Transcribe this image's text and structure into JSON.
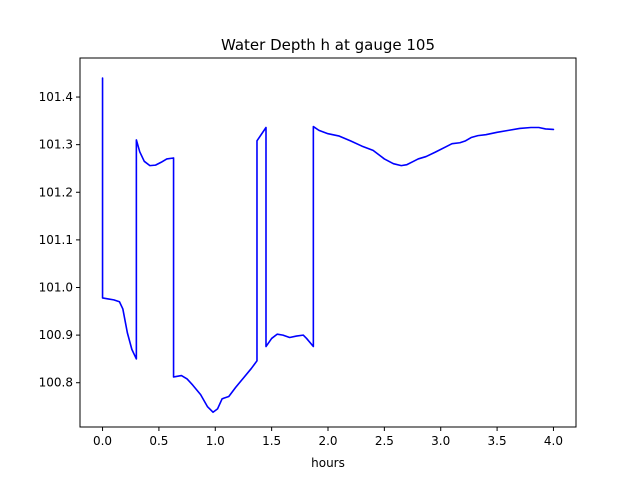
{
  "chart_data": {
    "type": "line",
    "title": "Water Depth h at gauge 105",
    "xlabel": "hours",
    "ylabel": "",
    "xlim": [
      -0.2,
      4.2
    ],
    "ylim": [
      100.707,
      101.482
    ],
    "xticks": [
      0.0,
      0.5,
      1.0,
      1.5,
      2.0,
      2.5,
      3.0,
      3.5,
      4.0
    ],
    "xtick_labels": [
      "0.0",
      "0.5",
      "1.0",
      "1.5",
      "2.0",
      "2.5",
      "3.0",
      "3.5",
      "4.0"
    ],
    "yticks": [
      100.8,
      100.9,
      101.0,
      101.1,
      101.2,
      101.3,
      101.4
    ],
    "ytick_labels": [
      "100.8",
      "100.9",
      "101.0",
      "101.1",
      "101.2",
      "101.3",
      "101.4"
    ],
    "grid": false,
    "legend": "none",
    "series": [
      {
        "color": "#0000ff",
        "x": [
          0.0,
          0.0,
          0.05,
          0.1,
          0.15,
          0.18,
          0.22,
          0.26,
          0.3,
          0.3,
          0.33,
          0.37,
          0.42,
          0.47,
          0.52,
          0.57,
          0.63,
          0.63,
          0.65,
          0.7,
          0.75,
          0.8,
          0.87,
          0.93,
          0.98,
          1.02,
          1.06,
          1.08,
          1.12,
          1.18,
          1.25,
          1.32,
          1.37,
          1.37,
          1.45,
          1.45,
          1.5,
          1.55,
          1.6,
          1.66,
          1.72,
          1.78,
          1.81,
          1.87,
          1.87,
          1.92,
          2.0,
          2.1,
          2.2,
          2.3,
          2.4,
          2.5,
          2.58,
          2.65,
          2.7,
          2.75,
          2.8,
          2.87,
          2.95,
          3.05,
          3.1,
          3.17,
          3.22,
          3.27,
          3.33,
          3.4,
          3.5,
          3.6,
          3.7,
          3.8,
          3.87,
          3.93,
          4.0
        ],
        "y": [
          101.44,
          100.978,
          100.976,
          100.974,
          100.97,
          100.955,
          100.905,
          100.87,
          100.85,
          101.31,
          101.285,
          101.265,
          101.256,
          101.257,
          101.263,
          101.27,
          101.272,
          100.812,
          100.813,
          100.815,
          100.808,
          100.795,
          100.775,
          100.75,
          100.738,
          100.745,
          100.766,
          100.768,
          100.771,
          100.79,
          100.81,
          100.83,
          100.846,
          101.308,
          101.336,
          100.876,
          100.893,
          100.902,
          100.9,
          100.895,
          100.898,
          100.9,
          100.893,
          100.876,
          101.338,
          101.33,
          101.323,
          101.318,
          101.308,
          101.297,
          101.288,
          101.27,
          101.26,
          101.256,
          101.258,
          101.264,
          101.27,
          101.275,
          101.284,
          101.296,
          101.302,
          101.304,
          101.308,
          101.315,
          101.319,
          101.321,
          101.326,
          101.33,
          101.334,
          101.336,
          101.336,
          101.333,
          101.332
        ]
      }
    ]
  }
}
